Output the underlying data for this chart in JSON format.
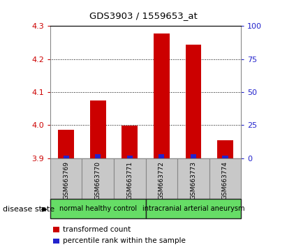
{
  "title": "GDS3903 / 1559653_at",
  "samples": [
    "GSM663769",
    "GSM663770",
    "GSM663771",
    "GSM663772",
    "GSM663773",
    "GSM663774"
  ],
  "transformed_count": [
    3.985,
    4.075,
    3.998,
    4.278,
    4.243,
    3.955
  ],
  "percentile_rank": [
    2,
    3,
    2,
    3,
    3,
    2
  ],
  "ylim_left": [
    3.9,
    4.3
  ],
  "ylim_right": [
    0,
    100
  ],
  "yticks_left": [
    3.9,
    4.0,
    4.1,
    4.2,
    4.3
  ],
  "yticks_right": [
    0,
    25,
    50,
    75,
    100
  ],
  "bar_color_red": "#cc0000",
  "bar_color_blue": "#2222cc",
  "grid_color": "#000000",
  "groups": [
    {
      "label": "normal healthy control",
      "span": [
        0,
        3
      ],
      "color": "#66dd66"
    },
    {
      "label": "intracranial arterial aneurysm",
      "span": [
        3,
        6
      ],
      "color": "#66dd66"
    }
  ],
  "disease_state_label": "disease state",
  "legend_red": "transformed count",
  "legend_blue": "percentile rank within the sample",
  "tick_label_color_left": "#cc0000",
  "tick_label_color_right": "#2222cc",
  "bar_width": 0.5,
  "blue_bar_width": 0.18,
  "base_value": 3.9,
  "xtick_bg": "#c8c8c8",
  "xtick_border": "#888888",
  "group_border": "#222222",
  "spine_color": "#888888"
}
